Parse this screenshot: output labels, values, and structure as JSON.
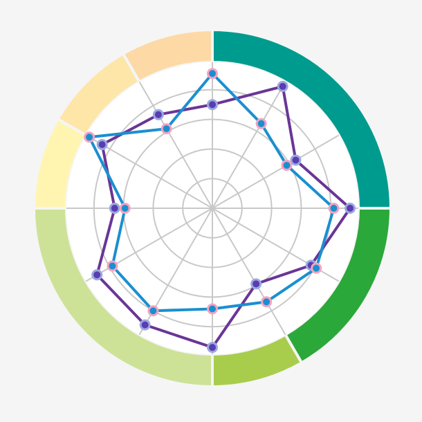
{
  "chart_data": {
    "type": "radar",
    "title": "",
    "axes_count": 12,
    "rlim": [
      0,
      5
    ],
    "rings": [
      1,
      2,
      3,
      4
    ],
    "grid": true,
    "legend": "none",
    "series": [
      {
        "color": "#1a8fd0",
        "marker_fill": "#f4a3c0",
        "values": [
          4.55,
          3.3,
          2.9,
          4.1,
          4.05,
          3.65,
          3.4,
          4.0,
          3.9,
          2.95,
          4.8,
          3.1
        ]
      },
      {
        "color": "#6a3596",
        "marker_fill": "#5a3db0",
        "values": [
          3.5,
          4.75,
          3.25,
          4.65,
          3.85,
          2.95,
          4.7,
          4.55,
          4.5,
          3.3,
          4.3,
          3.65
        ]
      }
    ],
    "outer_ring_segments": [
      {
        "color": "#009b8f",
        "start_deg": 0,
        "end_deg": 90
      },
      {
        "color": "#2ba83a",
        "start_deg": 90,
        "end_deg": 150
      },
      {
        "color": "#a8cd4d",
        "start_deg": 150,
        "end_deg": 180
      },
      {
        "color": "#cde297",
        "start_deg": 180,
        "end_deg": 270
      },
      {
        "color": "#fff5b0",
        "start_deg": 270,
        "end_deg": 300
      },
      {
        "color": "#fde6a8",
        "start_deg": 300,
        "end_deg": 330
      },
      {
        "color": "#fdd9a6",
        "start_deg": 330,
        "end_deg": 360
      }
    ]
  }
}
